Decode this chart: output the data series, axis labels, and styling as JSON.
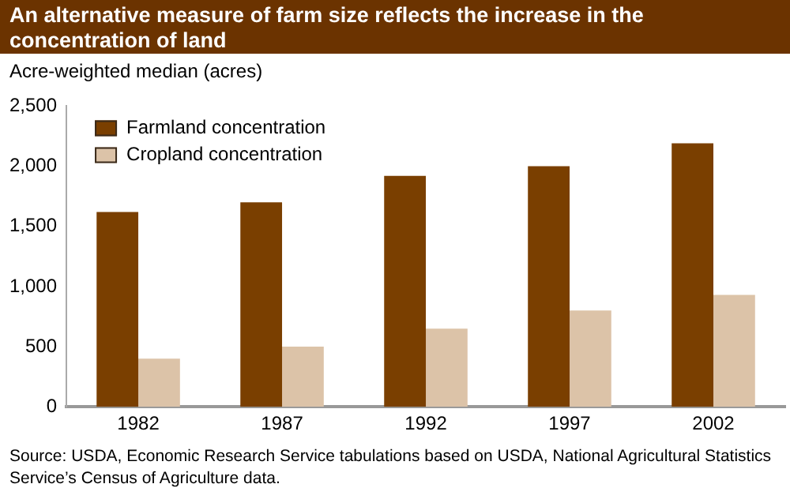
{
  "chart_data": {
    "type": "bar",
    "title": "An alternative measure of farm size reflects the increase in the concentration of land",
    "ylabel": "Acre-weighted median (acres)",
    "categories": [
      "1982",
      "1987",
      "1992",
      "1997",
      "2002"
    ],
    "series": [
      {
        "name": "Farmland concentration",
        "color": "#7a3f00",
        "values": [
          1620,
          1700,
          1920,
          2000,
          2190
        ]
      },
      {
        "name": "Cropland concentration",
        "color": "#dcc3a8",
        "values": [
          400,
          500,
          650,
          800,
          930
        ]
      }
    ],
    "ylim": [
      0,
      2500
    ],
    "yticks": [
      0,
      500,
      {
        "value": 1000,
        "label": "1,000"
      },
      {
        "value": 1500,
        "label": "1,500"
      },
      {
        "value": 2000,
        "label": "2,000"
      },
      {
        "value": 2500,
        "label": "2,500"
      }
    ],
    "grid": false,
    "legend": "top left",
    "annotations": [
      "Source:  USDA, Economic Research Service tabulations based on USDA, National Agricultural Statistics Service’s Census of Agriculture data."
    ]
  }
}
